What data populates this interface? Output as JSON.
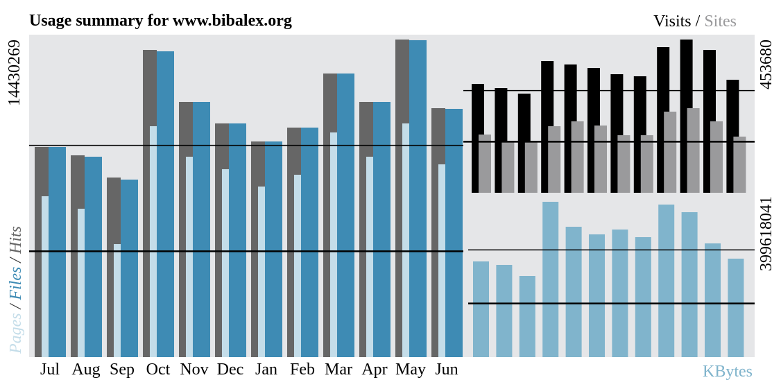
{
  "chart_data": [
    {
      "type": "bar",
      "title": "Usage summary for www.bibalex.org",
      "categories": [
        "Jul",
        "Aug",
        "Sep",
        "Oct",
        "Nov",
        "Dec",
        "Jan",
        "Feb",
        "Mar",
        "Apr",
        "May",
        "Jun"
      ],
      "series": [
        {
          "name": "Hits",
          "color": "#666666",
          "values": [
            9546600,
            9168500,
            8160300,
            13957600,
            11594600,
            10617900,
            9798700,
            10428800,
            12886400,
            11594600,
            14430269,
            11311000
          ]
        },
        {
          "name": "Files",
          "color": "#3e8bb4",
          "values": [
            9546600,
            9105500,
            8065800,
            13894600,
            11594600,
            10617900,
            9798700,
            10428800,
            12886400,
            11594600,
            14400000,
            11279500
          ]
        },
        {
          "name": "Pages",
          "color": "#c4dde9",
          "values": [
            7309600,
            6742500,
            5135600,
            10491800,
            9105500,
            8538400,
            7750700,
            8286300,
            10208300,
            9105500,
            10617900,
            8758900
          ]
        }
      ],
      "ylim": [
        0,
        14430269
      ],
      "yticks": [
        14430269
      ],
      "legend_separator": " / "
    },
    {
      "type": "bar",
      "series": [
        {
          "name": "Visits",
          "color": "#000000",
          "values": [
            322300,
            310000,
            293550,
            390030,
            379770,
            369500,
            351030,
            344870,
            431090,
            453680,
            422880,
            334610
          ]
        },
        {
          "name": "Sites",
          "color": "#9a9a9c",
          "values": [
            172440,
            151910,
            151910,
            197070,
            211440,
            199120,
            170380,
            170380,
            240180,
            250440,
            211440,
            166280
          ]
        }
      ],
      "ylim": [
        0,
        453680
      ],
      "yticks": [
        453680
      ],
      "legend_separator": " / "
    },
    {
      "type": "bar",
      "series": [
        {
          "name": "KBytes",
          "color": "#80b4cc",
          "values": [
            237700000,
            229090000,
            201530000,
            385840000,
            323830000,
            304880000,
            316940000,
            297990000,
            378950000,
            360000000,
            282490000,
            244590000
          ]
        }
      ],
      "ylim": [
        0,
        399618041
      ],
      "yticks": [
        399618041
      ]
    }
  ]
}
